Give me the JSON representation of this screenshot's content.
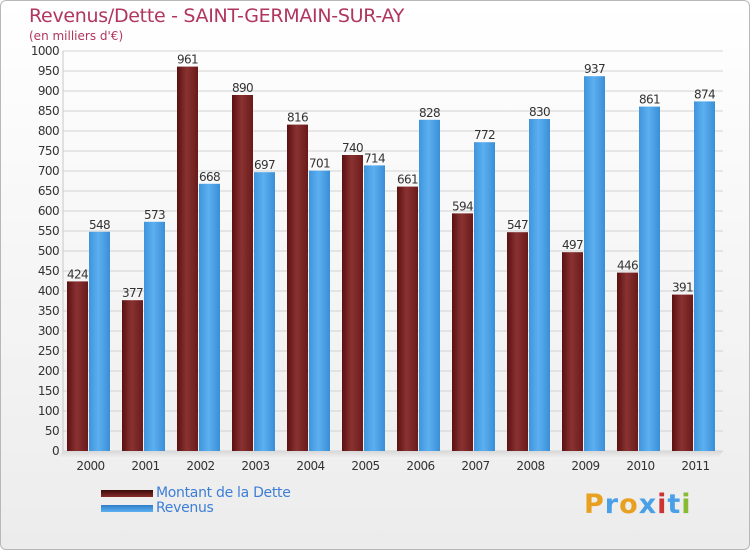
{
  "header": {
    "title": "Revenus/Dette - SAINT-GERMAIN-SUR-AY",
    "subtitle": "(en milliers d'€)"
  },
  "colors": {
    "title": "#b0365e",
    "debt_bar": "#7a2424",
    "revenue_bar": "#4aa0e6",
    "legend_text": "#3d7fd6"
  },
  "chart_data": {
    "type": "bar",
    "categories": [
      "2000",
      "2001",
      "2002",
      "2003",
      "2004",
      "2005",
      "2006",
      "2007",
      "2008",
      "2009",
      "2010",
      "2011"
    ],
    "series": [
      {
        "name": "Montant de la Dette",
        "values": [
          424,
          377,
          961,
          890,
          816,
          740,
          661,
          594,
          547,
          497,
          446,
          391
        ]
      },
      {
        "name": "Revenus",
        "values": [
          548,
          573,
          668,
          697,
          701,
          714,
          828,
          772,
          830,
          937,
          861,
          874
        ]
      }
    ],
    "title": "Revenus/Dette - SAINT-GERMAIN-SUR-AY",
    "ylabel": "(en milliers d'€)",
    "ylim": [
      0,
      1000
    ],
    "ytick_step": 50,
    "grid": true,
    "legend": "bottom-left"
  },
  "legend": {
    "items": [
      {
        "label": "Montant de la Dette",
        "color": "#7a2424"
      },
      {
        "label": "Revenus",
        "color": "#4aa0e6"
      }
    ]
  },
  "logo": {
    "text": "Proxiti",
    "letters": [
      {
        "ch": "P",
        "color": "#e8a020"
      },
      {
        "ch": "r",
        "color": "#4aa0e6"
      },
      {
        "ch": "o",
        "color": "#e8a020"
      },
      {
        "ch": "x",
        "color": "#4aa0e6"
      },
      {
        "ch": "i",
        "color": "#cc3333"
      },
      {
        "ch": "t",
        "color": "#4aa0e6"
      },
      {
        "ch": "i",
        "color": "#88bb33"
      }
    ]
  }
}
